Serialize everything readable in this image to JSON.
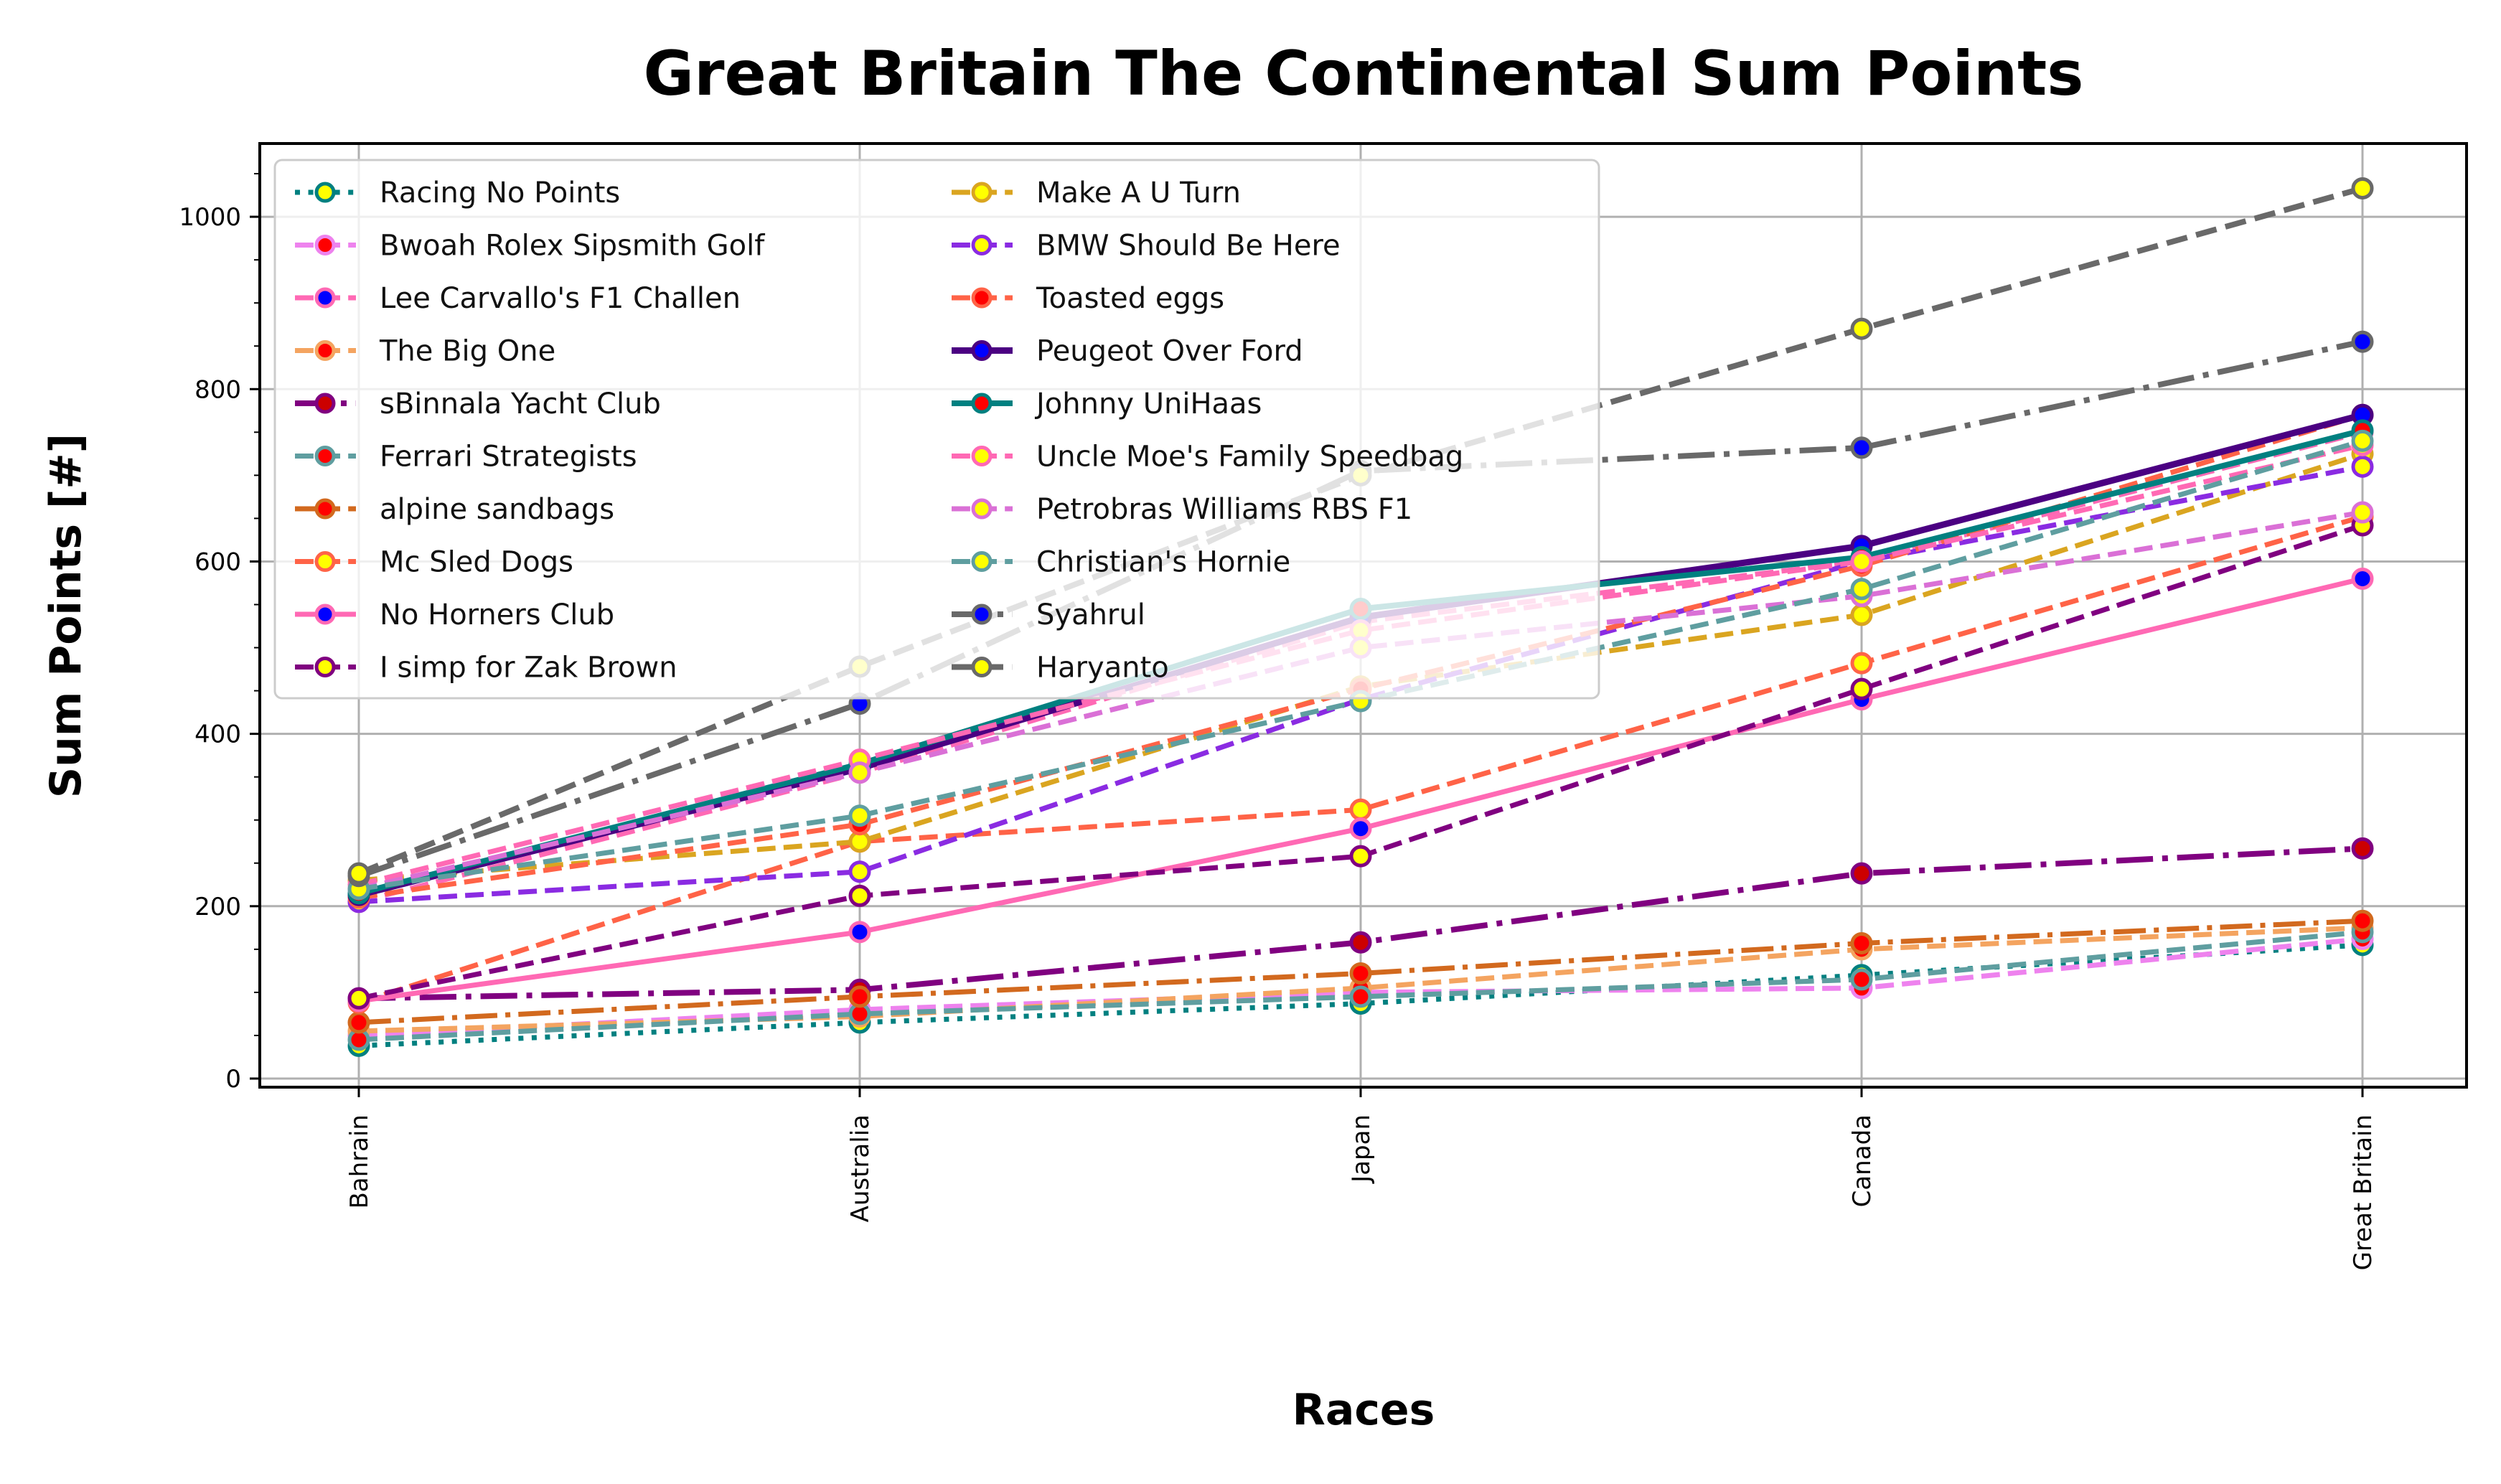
{
  "chart_data": {
    "type": "line",
    "title": "Great Britain The Continental Sum Points",
    "xlabel": "Races",
    "ylabel": "Sum Points [#]",
    "categories": [
      "Bahrain",
      "Australia",
      "Japan",
      "Canada",
      "Great Britain"
    ],
    "ylim": [
      -10,
      1085
    ],
    "yticks": [
      0,
      200,
      400,
      600,
      800,
      1000
    ],
    "grid": true,
    "legend_position": "top-left",
    "legend_columns": 2,
    "series": [
      {
        "name": "Racing No Points",
        "values": [
          38,
          65,
          87,
          120,
          155
        ],
        "color": "#008080",
        "dash": "dotted",
        "marker_face": "#ffff00",
        "width": 7
      },
      {
        "name": "Bwoah Rolex Sipsmith Golf",
        "values": [
          50,
          80,
          100,
          105,
          162
        ],
        "color": "#ee82ee",
        "dash": "dashed",
        "marker_face": "#ff0000",
        "width": 7
      },
      {
        "name": "Lee Carvallo's F1 Challen",
        "values": [
          205,
          355,
          530,
          600,
          750
        ],
        "color": "#ff69b4",
        "dash": "dashed",
        "marker_face": "#0000ff",
        "width": 7
      },
      {
        "name": "The Big One",
        "values": [
          55,
          72,
          105,
          150,
          175
        ],
        "color": "#f4a460",
        "dash": "dashed",
        "marker_face": "#ff0000",
        "width": 7
      },
      {
        "name": "sBinnala Yacht Club",
        "values": [
          93,
          103,
          158,
          238,
          267
        ],
        "color": "#800080",
        "dash": "dashdot",
        "marker_face": "#cc0000",
        "width": 8
      },
      {
        "name": "Ferrari Strategists",
        "values": [
          45,
          75,
          95,
          115,
          170
        ],
        "color": "#5f9ea0",
        "dash": "dashed",
        "marker_face": "#ff0000",
        "width": 7
      },
      {
        "name": "alpine sandbags",
        "values": [
          65,
          95,
          122,
          157,
          183
        ],
        "color": "#d2691e",
        "dash": "dashdot",
        "marker_face": "#ff0000",
        "width": 7
      },
      {
        "name": "Mc Sled Dogs",
        "values": [
          88,
          275,
          312,
          482,
          652
        ],
        "color": "#ff6347",
        "dash": "dashed",
        "marker_face": "#ffff00",
        "width": 7
      },
      {
        "name": "No Horners Club",
        "values": [
          90,
          170,
          290,
          440,
          580
        ],
        "color": "#ff69b4",
        "dash": "solid",
        "marker_face": "#0000ff",
        "width": 7
      },
      {
        "name": "I simp for Zak Brown",
        "values": [
          93,
          212,
          258,
          452,
          642
        ],
        "color": "#800080",
        "dash": "dashed",
        "marker_face": "#ffff00",
        "width": 7
      },
      {
        "name": "Make A U Turn",
        "values": [
          230,
          275,
          455,
          538,
          725
        ],
        "color": "#daa520",
        "dash": "dashed",
        "marker_face": "#ffff00",
        "width": 7
      },
      {
        "name": "BMW Should Be Here",
        "values": [
          205,
          240,
          440,
          600,
          710
        ],
        "color": "#8a2be2",
        "dash": "dashed",
        "marker_face": "#ffff00",
        "width": 7
      },
      {
        "name": "Toasted eggs",
        "values": [
          210,
          295,
          452,
          595,
          770
        ],
        "color": "#ff6347",
        "dash": "dashed",
        "marker_face": "#ff0000",
        "width": 7
      },
      {
        "name": "Peugeot Over Ford",
        "values": [
          213,
          360,
          535,
          618,
          770
        ],
        "color": "#4b0082",
        "dash": "solid",
        "marker_face": "#0000ff",
        "width": 9
      },
      {
        "name": "Johnny UniHaas",
        "values": [
          215,
          365,
          545,
          605,
          752
        ],
        "color": "#008080",
        "dash": "solid",
        "marker_face": "#ff0000",
        "width": 8
      },
      {
        "name": "Uncle Moe's Family Speedbag",
        "values": [
          225,
          370,
          520,
          600,
          735
        ],
        "color": "#ff69b4",
        "dash": "dashed",
        "marker_face": "#ffff00",
        "width": 7
      },
      {
        "name": "Petrobras Williams RBS F1",
        "values": [
          220,
          355,
          500,
          560,
          657
        ],
        "color": "#da70d6",
        "dash": "dashed",
        "marker_face": "#ffff00",
        "width": 7
      },
      {
        "name": "Christian's Hornie",
        "values": [
          220,
          305,
          438,
          568,
          740
        ],
        "color": "#5f9ea0",
        "dash": "dashed",
        "marker_face": "#ffff00",
        "width": 7
      },
      {
        "name": "Syahrul",
        "values": [
          235,
          435,
          705,
          732,
          855
        ],
        "color": "#696969",
        "dash": "dashdot",
        "marker_face": "#0000ff",
        "width": 8
      },
      {
        "name": "Haryanto",
        "values": [
          238,
          478,
          700,
          870,
          1033
        ],
        "color": "#696969",
        "dash": "dashed",
        "marker_face": "#ffff00",
        "width": 8
      }
    ]
  }
}
